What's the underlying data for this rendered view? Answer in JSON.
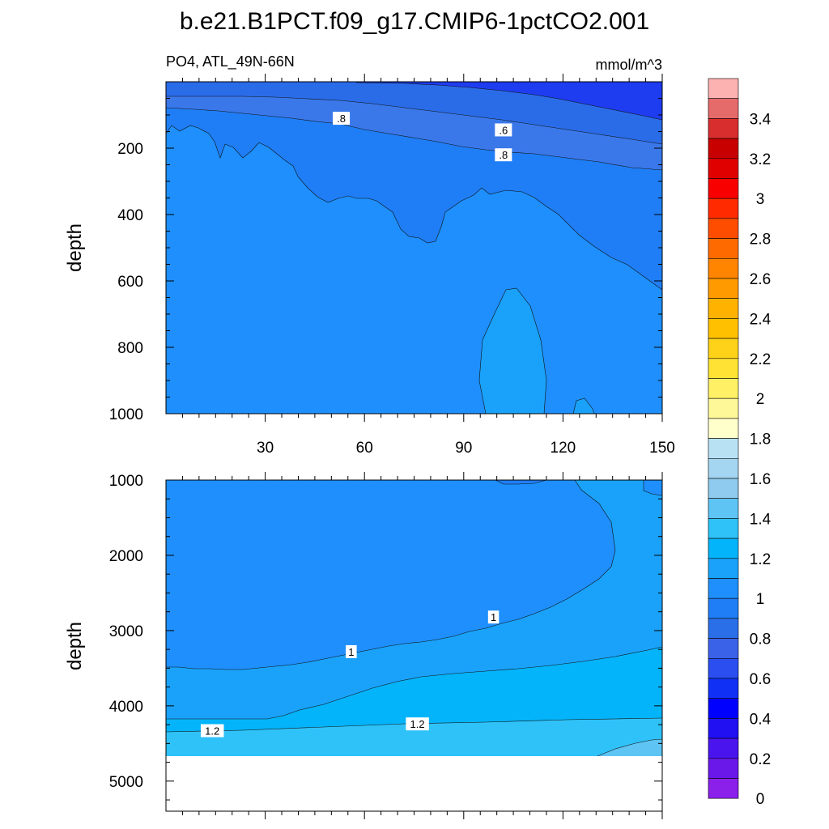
{
  "title": "b.e21.B1PCT.f09_g17.CMIP6-1pctCO2.001",
  "left_subtitle": "PO4, ATL_49N-66N",
  "right_subtitle": "mmol/m^3",
  "chart_data": [
    {
      "type": "contour",
      "panel": "upper",
      "ylabel": "depth",
      "xlim": [
        0,
        150
      ],
      "ylim": [
        1000,
        0
      ],
      "x_ticks": [
        "30",
        "60",
        "90",
        "120",
        "150"
      ],
      "x_tick_values": [
        30,
        60,
        90,
        120,
        150
      ],
      "y_ticks": [
        "200",
        "400",
        "600",
        "800",
        "1000"
      ],
      "y_tick_values": [
        200,
        400,
        600,
        800,
        1000
      ],
      "contour_labels": [
        {
          "text": ".8",
          "x": 53,
          "y": 110
        },
        {
          "text": ".6",
          "x": 102,
          "y": 145
        },
        {
          "text": ".8",
          "x": 102,
          "y": 220
        }
      ]
    },
    {
      "type": "contour",
      "panel": "lower",
      "ylabel": "depth",
      "xlim": [
        0,
        150
      ],
      "ylim": [
        5400,
        1000
      ],
      "x_tick_values": [
        30,
        60,
        90,
        120,
        150
      ],
      "y_ticks": [
        "1000",
        "2000",
        "3000",
        "4000",
        "5000"
      ],
      "y_tick_values": [
        1000,
        2000,
        3000,
        4000,
        5000
      ],
      "contour_labels": [
        {
          "text": "1",
          "x": 56,
          "y": 3280
        },
        {
          "text": "1",
          "x": 99,
          "y": 2820
        },
        {
          "text": "1.2",
          "x": 14,
          "y": 4330
        },
        {
          "text": "1.2",
          "x": 76,
          "y": 4240
        }
      ]
    }
  ],
  "colorbar": {
    "labels": [
      "3.4",
      "3.2",
      "3",
      "2.8",
      "2.6",
      "2.4",
      "2.2",
      "2",
      "1.8",
      "1.6",
      "1.4",
      "1.2",
      "1",
      "0.8",
      "0.6",
      "0.4",
      "0.2",
      "0"
    ],
    "colors": [
      "#fdb2b2",
      "#e56a6a",
      "#d92e2e",
      "#c80000",
      "#e00000",
      "#f80000",
      "#ff2a00",
      "#ff4d00",
      "#ff6a00",
      "#ff8400",
      "#ff9a00",
      "#ffb200",
      "#ffc000",
      "#ffd21a",
      "#ffe233",
      "#fff066",
      "#fff899",
      "#ffffcc",
      "#b8e2f4",
      "#a4d6f1",
      "#8ecbee",
      "#5ec4f4",
      "#2fc2f8",
      "#04b4fa",
      "#1aa2fa",
      "#1e8ffc",
      "#1f7ef5",
      "#2a6fe8",
      "#3a62e8",
      "#2a4ef0",
      "#1030f5",
      "#0000ff",
      "#2010f2",
      "#4a14ee",
      "#6a18ea",
      "#8a20ea"
    ]
  },
  "colors": {
    "c_lt06": "#1e3cf0",
    "c_06_07": "#2a6ce8",
    "c_07_08": "#3a78ea",
    "c_08_09": "#1f7ef5",
    "c_09_10": "#1e8ffc",
    "c_10_11": "#1aa2fa",
    "c_11_12": "#04b4fa",
    "c_12_13": "#2fc2f8",
    "c_13_14": "#5ec4f4"
  }
}
